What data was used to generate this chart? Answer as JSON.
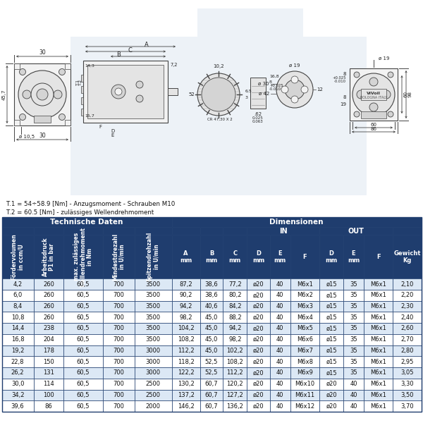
{
  "title_note1": "T.1 = 54÷58.9 [Nm] - Anzugsmoment - Schrauben M10",
  "title_note2": "T.2 = 60.5 [Nm] - zulässiges Wellendrehmoment",
  "header_tech": "Technische Daten",
  "header_dim": "Dimensionen",
  "header_in": "IN",
  "header_out": "OUT",
  "header_bg_color": "#1f3d6e",
  "header_text_color": "#ffffff",
  "row_odd_color": "#dce8f5",
  "row_even_color": "#ffffff",
  "border_color": "#1f3d6e",
  "col_headers_rotated": [
    "Fördervolumen\nin ccm/U",
    "Arbeitsdruck\nP1 in bar",
    "max. zulässiges\nWellendrehmoment\nin Nm",
    "Mindestdrezahl\nin U/min",
    "Spitzendrehzahl\nin U/min"
  ],
  "col_headers_normal": [
    "A\nmm",
    "B\nmm",
    "C\nmm",
    "D\nmm",
    "E\nmm",
    "F",
    "D\nmm",
    "E\nmm",
    "F",
    "Gewicht\nKg"
  ],
  "table_data": [
    [
      "4,2",
      "260",
      "60,5",
      "700",
      "3500",
      "87,2",
      "38,6",
      "77,2",
      "ø20",
      "40",
      "M6x1",
      "ø15",
      "35",
      "M6x1",
      "2,10"
    ],
    [
      "6,0",
      "260",
      "60,5",
      "700",
      "3500",
      "90,2",
      "38,6",
      "80,2",
      "ø20",
      "40",
      "M6x2",
      "ø15",
      "35",
      "M6x1",
      "2,20"
    ],
    [
      "8,4",
      "260",
      "60,5",
      "700",
      "3500",
      "94,2",
      "40,6",
      "84,2",
      "ø20",
      "40",
      "M6x3",
      "ø15",
      "35",
      "M6x1",
      "2,30"
    ],
    [
      "10,8",
      "260",
      "60,5",
      "700",
      "3500",
      "98,2",
      "45,0",
      "88,2",
      "ø20",
      "40",
      "M6x4",
      "ø15",
      "35",
      "M6x1",
      "2,40"
    ],
    [
      "14,4",
      "238",
      "60,5",
      "700",
      "3500",
      "104,2",
      "45,0",
      "94,2",
      "ø20",
      "40",
      "M6x5",
      "ø15",
      "35",
      "M6x1",
      "2,60"
    ],
    [
      "16,8",
      "204",
      "60,5",
      "700",
      "3500",
      "108,2",
      "45,0",
      "98,2",
      "ø20",
      "40",
      "M6x6",
      "ø15",
      "35",
      "M6x1",
      "2,70"
    ],
    [
      "19,2",
      "178",
      "60,5",
      "700",
      "3000",
      "112,2",
      "45,0",
      "102,2",
      "ø20",
      "40",
      "M6x7",
      "ø15",
      "35",
      "M6x1",
      "2,80"
    ],
    [
      "22,8",
      "150",
      "60,5",
      "700",
      "3000",
      "118,2",
      "52,5",
      "108,2",
      "ø20",
      "40",
      "M6x8",
      "ø15",
      "35",
      "M6x1",
      "2,95"
    ],
    [
      "26,2",
      "131",
      "60,5",
      "700",
      "3000",
      "122,2",
      "52,5",
      "112,2",
      "ø20",
      "40",
      "M6x9",
      "ø15",
      "35",
      "M6x1",
      "3,05"
    ],
    [
      "30,0",
      "114",
      "60,5",
      "700",
      "2500",
      "130,2",
      "60,7",
      "120,2",
      "ø20",
      "40",
      "M6x10",
      "ø20",
      "40",
      "M6x1",
      "3,30"
    ],
    [
      "34,2",
      "100",
      "60,5",
      "700",
      "2500",
      "137,2",
      "60,7",
      "127,2",
      "ø20",
      "40",
      "M6x11",
      "ø20",
      "40",
      "M6x1",
      "3,50"
    ],
    [
      "39,6",
      "86",
      "60,5",
      "700",
      "2000",
      "146,2",
      "60,7",
      "136,2",
      "ø20",
      "40",
      "M6x12",
      "ø20",
      "40",
      "M6x1",
      "3,70"
    ]
  ],
  "bg_color": "#ffffff",
  "watermark_color": "#b8cfe0",
  "drawing_line_color": "#444444",
  "drawing_fill_color": "#f2f2f2",
  "drawing_fill2": "#e4e4e4",
  "drawing_fill3": "#d4d4d4"
}
